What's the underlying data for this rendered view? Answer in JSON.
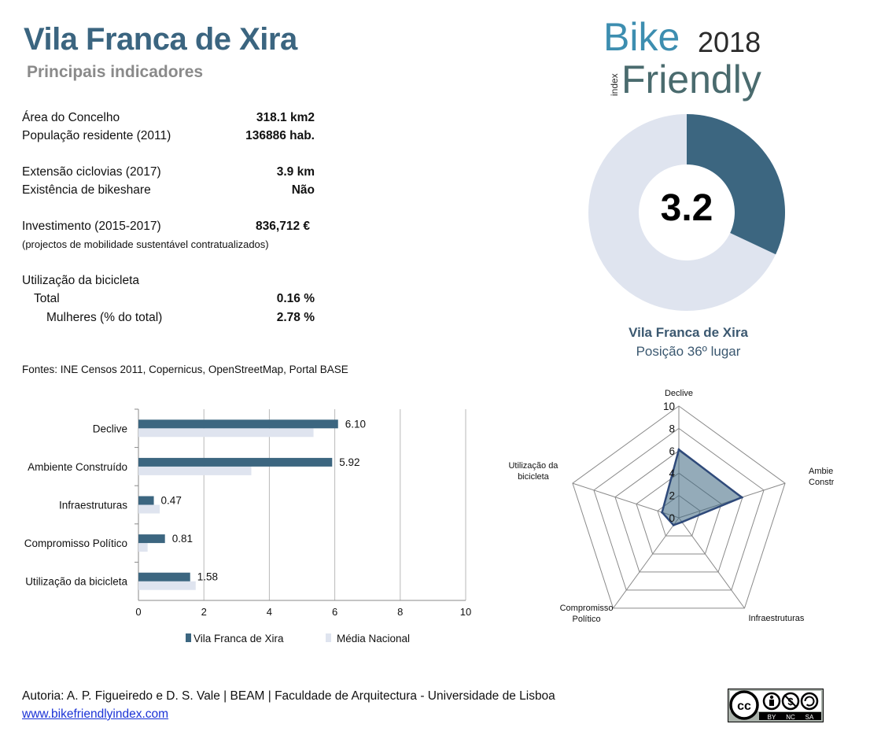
{
  "header": {
    "title": "Vila Franca de Xira",
    "subtitle": "Principais indicadores"
  },
  "indicators": {
    "area_label": "Área do Concelho",
    "area_value": "318.1 km2",
    "pop_label": "População residente (2011)",
    "pop_value": "136886 hab.",
    "cycle_label": "Extensão ciclovias (2017)",
    "cycle_value": "3.9 km",
    "bikeshare_label": "Existência de bikeshare",
    "bikeshare_value": "Não",
    "invest_label": "Investimento (2015-2017)",
    "invest_value": "836,712 €",
    "invest_note": "(projectos de mobilidade sustentável contratualizados)",
    "usage_label": "Utilização da bicicleta",
    "total_label": "Total",
    "total_value": "0.16 %",
    "women_label": "Mulheres (% do total)",
    "women_value": "2.78 %"
  },
  "sources": "Fontes: INE Censos 2011, Copernicus, OpenStreetMap,  Portal BASE",
  "logo": {
    "word1": "Bike",
    "word2": "Friendly",
    "year": "2018",
    "small": "index"
  },
  "score": {
    "value": "3.2",
    "fraction": 0.32,
    "name": "Vila Franca de Xira",
    "position": "Posição 36º lugar",
    "colors": {
      "filled": "#3c6680",
      "rest": "#dfe4ef"
    }
  },
  "chart_data": [
    {
      "type": "bar",
      "orientation": "horizontal",
      "categories": [
        "Declive",
        "Ambiente Construído",
        "Infraestruturas",
        "Compromisso Político",
        "Utilização da bicicleta"
      ],
      "series": [
        {
          "name": "Vila Franca de Xira",
          "values": [
            6.1,
            5.92,
            0.47,
            0.81,
            1.58
          ],
          "color": "#3c6680",
          "labels": [
            "6.10",
            "5.92",
            "0.47",
            "0.81",
            "1.58"
          ]
        },
        {
          "name": "Média Nacional",
          "values": [
            5.35,
            3.45,
            0.65,
            0.28,
            1.75
          ],
          "color": "#dfe4ef"
        }
      ],
      "xlim": [
        0,
        10
      ],
      "xticks": [
        0,
        2,
        4,
        6,
        8,
        10
      ],
      "grid": true,
      "legend": "bottom"
    },
    {
      "type": "radar",
      "axes": [
        "Declive",
        "Ambiente Construído",
        "Infraestruturas",
        "Compromisso Político",
        "Utilização da bicicleta"
      ],
      "axis_text": [
        [
          "Declive"
        ],
        [
          "Ambiente",
          "Construído"
        ],
        [
          "Infraestruturas"
        ],
        [
          "Compromisso",
          "Político"
        ],
        [
          "Utilização da",
          "bicicleta"
        ]
      ],
      "series": [
        {
          "name": "Vila Franca de Xira",
          "values": [
            6.1,
            5.92,
            0.47,
            0.81,
            1.58
          ],
          "color": "#3c6680"
        }
      ],
      "rlim": [
        0,
        10
      ],
      "rticks": [
        0,
        2,
        4,
        6,
        8,
        10
      ]
    }
  ],
  "footer": {
    "authors": "Autoria: A. P. Figueiredo e D. S. Vale | BEAM | Faculdade de Arquitectura - Universidade de Lisboa",
    "link": "www.bikefriendlyindex.com",
    "license": {
      "cc": "cc",
      "by": "BY",
      "nc": "NC",
      "sa": "SA"
    }
  }
}
